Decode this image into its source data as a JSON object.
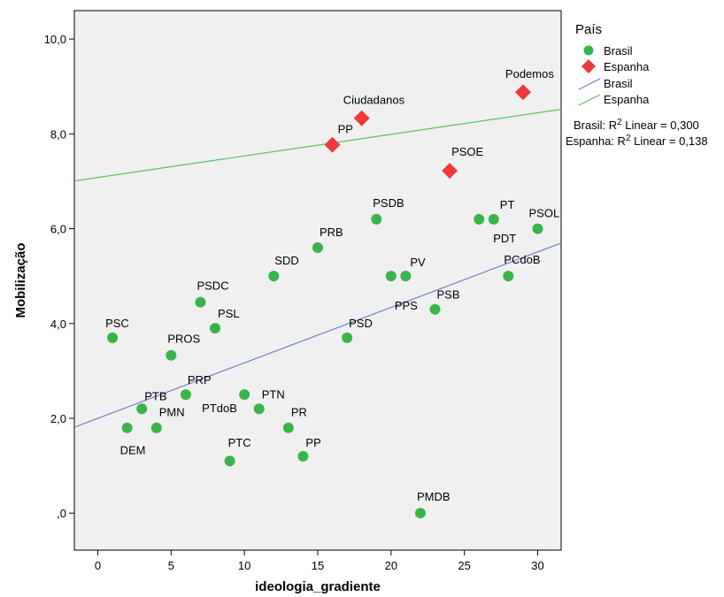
{
  "chart_data": {
    "type": "scatter",
    "title": "",
    "xlabel": "ideologia_gradiente",
    "ylabel": "Mobilização",
    "xlim": [
      -1.6,
      31.6
    ],
    "ylim": [
      -0.78,
      10.6
    ],
    "xticks": [
      0,
      5,
      10,
      15,
      20,
      25,
      30
    ],
    "xtick_labels": [
      "0",
      "5",
      "10",
      "15",
      "20",
      "25",
      "30"
    ],
    "yticks": [
      0,
      2,
      4,
      6,
      8,
      10
    ],
    "ytick_labels": [
      ",0",
      "2,0",
      "4,0",
      "6,0",
      "8,0",
      "10,0"
    ],
    "grid": false,
    "legend_position": "right",
    "legend": {
      "title": "País",
      "markers": [
        {
          "label": "Brasil",
          "color": "#3ab44a",
          "shape": "circle"
        },
        {
          "label": "Espanha",
          "color": "#ee3a3a",
          "shape": "diamond"
        }
      ],
      "lines": [
        {
          "label": "Brasil",
          "color": "#6a7fd0"
        },
        {
          "label": "Espanha",
          "color": "#57c25e"
        }
      ],
      "r2_prefix_br": "Brasil: R",
      "r2_suffix_br": " Linear = 0,300",
      "r2_prefix_es": "Espanha: R",
      "r2_suffix_es": " Linear = 0,138",
      "sup": "2"
    },
    "series": [
      {
        "name": "Brasil",
        "color": "#3ab44a",
        "shape": "circle",
        "points": [
          {
            "label": "PSC",
            "x": 1,
            "y": 3.7
          },
          {
            "label": "DEM",
            "x": 2,
            "y": 1.8
          },
          {
            "label": "PTB",
            "x": 3,
            "y": 2.2
          },
          {
            "label": "PMN",
            "x": 4,
            "y": 1.8
          },
          {
            "label": "PROS",
            "x": 5,
            "y": 3.33
          },
          {
            "label": "PRP",
            "x": 6,
            "y": 2.5
          },
          {
            "label": "PSDC",
            "x": 7,
            "y": 4.45
          },
          {
            "label": "PSL",
            "x": 8,
            "y": 3.9
          },
          {
            "label": "PTC",
            "x": 9,
            "y": 1.1
          },
          {
            "label": "PTdoB",
            "x": 10,
            "y": 2.5
          },
          {
            "label": "PTN",
            "x": 11,
            "y": 2.2
          },
          {
            "label": "SDD",
            "x": 12,
            "y": 5.0
          },
          {
            "label": "PR",
            "x": 13,
            "y": 1.8
          },
          {
            "label": "PP",
            "x": 14,
            "y": 1.2
          },
          {
            "label": "PRB",
            "x": 15,
            "y": 5.6
          },
          {
            "label": "PSD",
            "x": 17,
            "y": 3.7
          },
          {
            "label": "PSDB",
            "x": 19,
            "y": 6.2
          },
          {
            "label": "PPS",
            "x": 20,
            "y": 5.0
          },
          {
            "label": "PV",
            "x": 21,
            "y": 5.0
          },
          {
            "label": "PMDB",
            "x": 22,
            "y": 0.0
          },
          {
            "label": "PSB",
            "x": 23,
            "y": 4.3
          },
          {
            "label": "PDT",
            "x": 26,
            "y": 6.2
          },
          {
            "label": "PT",
            "x": 27,
            "y": 6.2
          },
          {
            "label": "PCdoB",
            "x": 28,
            "y": 5.0
          },
          {
            "label": "PSOL",
            "x": 30,
            "y": 6.0
          }
        ],
        "fit": {
          "intercept": 2.0,
          "slope": 0.117
        }
      },
      {
        "name": "Espanha",
        "color": "#ee3a3a",
        "shape": "diamond",
        "points": [
          {
            "label": "PP",
            "x": 16,
            "y": 7.77
          },
          {
            "label": "Ciudadanos",
            "x": 18,
            "y": 8.33
          },
          {
            "label": "PSOE",
            "x": 24,
            "y": 7.22
          },
          {
            "label": "Podemos",
            "x": 29,
            "y": 8.88
          }
        ],
        "fit": {
          "intercept": 7.08,
          "slope": 0.0455
        }
      }
    ]
  }
}
